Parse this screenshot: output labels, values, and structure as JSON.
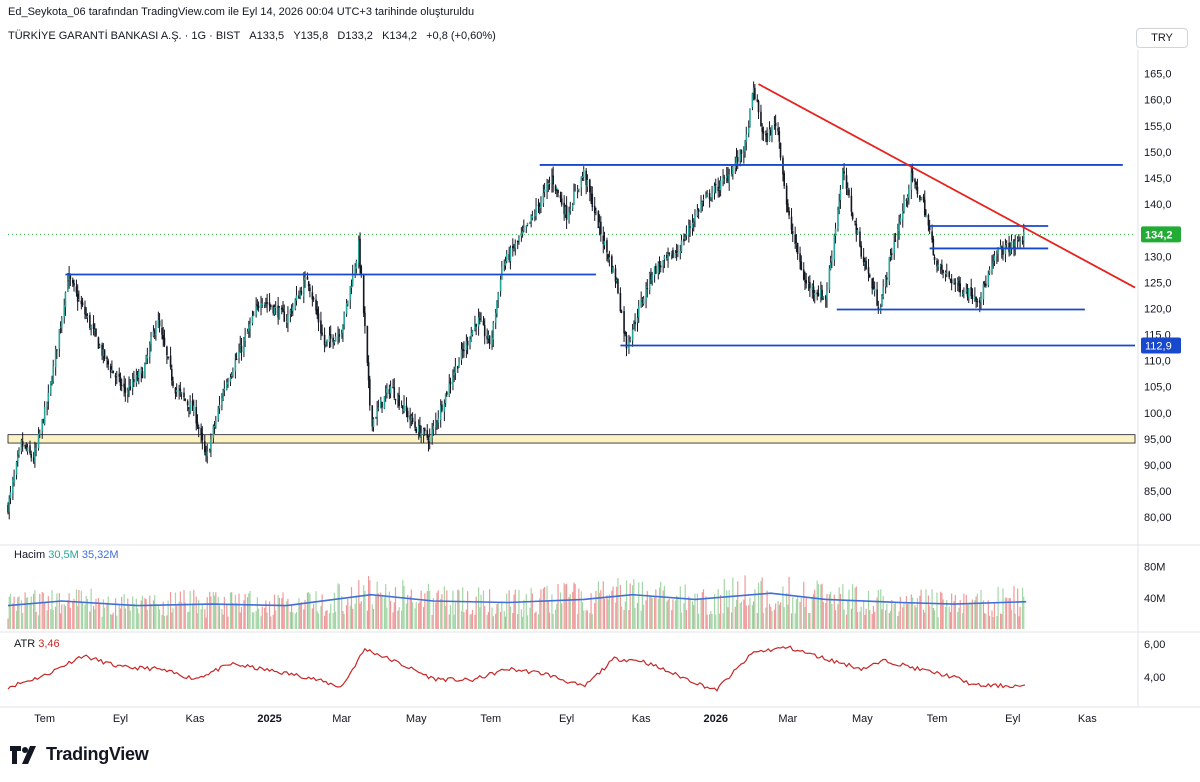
{
  "header": {
    "credit": "Ed_Seykota_06 tarafından TradingView.com ile Eyl 14, 2026 00:04 UTC+3 tarihinde oluşturuldu",
    "symbol_line": "TÜRKİYE GARANTİ BANKASI A.Ş. · 1G · BIST",
    "ohlc": {
      "open_label": "A",
      "open": "133,5",
      "high_label": "Y",
      "high": "135,8",
      "low_label": "D",
      "low": "133,2",
      "close_label": "K",
      "close": "134,2",
      "change": "+0,8 (+0,60%)"
    }
  },
  "currency": "TRY",
  "brand": "TradingView",
  "colors": {
    "up": "#26a69a",
    "candle": "#131722",
    "hline": "#1848cc",
    "trend": "#e8211c",
    "zone_fill": "#fdf2c4",
    "vol_up": "#a5d6a7",
    "vol_down": "#ef9a9a",
    "vol_ma": "#3f6fd8",
    "atr": "#c62828",
    "price_tag": "#22ab35",
    "level_tag": "#1848cc"
  },
  "chart_data": [
    {
      "type": "candlestick",
      "title": "TÜRKİYE GARANTİ BANKASI A.Ş. · 1G · BIST",
      "y_ticks": [
        "165,0",
        "160,0",
        "155,0",
        "150,0",
        "145,0",
        "140,0",
        "135,0",
        "130,0",
        "125,0",
        "120,0",
        "115,0",
        "110,0",
        "105,0",
        "100,0",
        "95,00",
        "90,00",
        "85,00",
        "80,00"
      ],
      "y_tick_values": [
        165,
        160,
        155,
        150,
        145,
        140,
        135,
        130,
        125,
        120,
        115,
        110,
        105,
        100,
        95,
        90,
        85,
        80
      ],
      "ylim": [
        76,
        168
      ],
      "x_ticks": [
        "Tem",
        "Eyl",
        "Kas",
        "2025",
        "Mar",
        "May",
        "Tem",
        "Eyl",
        "Kas",
        "2026",
        "Mar",
        "May",
        "Tem",
        "Eyl",
        "Kas"
      ],
      "x_tick_dates": [
        "2024-07",
        "2024-09",
        "2024-11",
        "2025-01",
        "2025-03",
        "2025-05",
        "2025-07",
        "2025-09",
        "2025-11",
        "2026-01",
        "2026-03",
        "2026-05",
        "2026-07",
        "2026-09",
        "2026-11"
      ],
      "xlim": [
        "2024-06-01",
        "2026-12-10"
      ],
      "close_series": [
        {
          "x": "2024-06-01",
          "y": 82
        },
        {
          "x": "2024-06-12",
          "y": 94
        },
        {
          "x": "2024-06-22",
          "y": 91
        },
        {
          "x": "2024-07-05",
          "y": 104
        },
        {
          "x": "2024-07-20",
          "y": 126
        },
        {
          "x": "2024-08-05",
          "y": 118
        },
        {
          "x": "2024-08-20",
          "y": 110
        },
        {
          "x": "2024-09-05",
          "y": 104
        },
        {
          "x": "2024-09-20",
          "y": 108
        },
        {
          "x": "2024-10-01",
          "y": 118
        },
        {
          "x": "2024-10-15",
          "y": 105
        },
        {
          "x": "2024-11-01",
          "y": 100
        },
        {
          "x": "2024-11-10",
          "y": 91
        },
        {
          "x": "2024-11-25",
          "y": 105
        },
        {
          "x": "2024-12-10",
          "y": 113
        },
        {
          "x": "2024-12-25",
          "y": 122
        },
        {
          "x": "2025-01-15",
          "y": 118
        },
        {
          "x": "2025-02-01",
          "y": 126
        },
        {
          "x": "2025-02-15",
          "y": 113
        },
        {
          "x": "2025-03-01",
          "y": 116
        },
        {
          "x": "2025-03-15",
          "y": 132
        },
        {
          "x": "2025-03-20",
          "y": 116
        },
        {
          "x": "2025-03-25",
          "y": 98
        },
        {
          "x": "2025-04-10",
          "y": 105
        },
        {
          "x": "2025-05-01",
          "y": 97
        },
        {
          "x": "2025-05-12",
          "y": 95
        },
        {
          "x": "2025-06-01",
          "y": 108
        },
        {
          "x": "2025-06-20",
          "y": 118
        },
        {
          "x": "2025-07-01",
          "y": 113
        },
        {
          "x": "2025-07-10",
          "y": 128
        },
        {
          "x": "2025-08-01",
          "y": 136
        },
        {
          "x": "2025-08-20",
          "y": 145
        },
        {
          "x": "2025-09-01",
          "y": 138
        },
        {
          "x": "2025-09-15",
          "y": 146
        },
        {
          "x": "2025-10-01",
          "y": 133
        },
        {
          "x": "2025-10-12",
          "y": 125
        },
        {
          "x": "2025-10-20",
          "y": 113
        },
        {
          "x": "2025-11-10",
          "y": 127
        },
        {
          "x": "2025-12-01",
          "y": 131
        },
        {
          "x": "2025-12-20",
          "y": 140
        },
        {
          "x": "2026-01-10",
          "y": 145
        },
        {
          "x": "2026-01-25",
          "y": 151
        },
        {
          "x": "2026-02-01",
          "y": 162
        },
        {
          "x": "2026-02-10",
          "y": 152
        },
        {
          "x": "2026-02-20",
          "y": 156
        },
        {
          "x": "2026-03-01",
          "y": 138
        },
        {
          "x": "2026-03-15",
          "y": 125
        },
        {
          "x": "2026-04-01",
          "y": 122
        },
        {
          "x": "2026-04-15",
          "y": 146
        },
        {
          "x": "2026-05-01",
          "y": 130
        },
        {
          "x": "2026-05-15",
          "y": 120
        },
        {
          "x": "2026-05-25",
          "y": 131
        },
        {
          "x": "2026-06-10",
          "y": 145
        },
        {
          "x": "2026-06-20",
          "y": 140
        },
        {
          "x": "2026-07-01",
          "y": 128
        },
        {
          "x": "2026-07-20",
          "y": 124
        },
        {
          "x": "2026-08-05",
          "y": 122
        },
        {
          "x": "2026-08-20",
          "y": 131
        },
        {
          "x": "2026-09-01",
          "y": 132
        },
        {
          "x": "2026-09-12",
          "y": 134.2
        }
      ],
      "horizontal_levels": [
        {
          "y": 126.5,
          "from": "2024-07-18",
          "to": "2025-09-25"
        },
        {
          "y": 147.5,
          "from": "2025-08-10",
          "to": "2026-11-30"
        },
        {
          "y": 135.8,
          "from": "2026-06-25",
          "to": "2026-09-30"
        },
        {
          "y": 131.5,
          "from": "2026-06-25",
          "to": "2026-09-30"
        },
        {
          "y": 119.8,
          "from": "2026-04-10",
          "to": "2026-10-30"
        },
        {
          "y": 112.9,
          "from": "2025-10-15",
          "to": "2026-12-10"
        }
      ],
      "support_zone": [
        94.2,
        95.8
      ],
      "trendline": [
        {
          "x": "2026-02-05",
          "y": 163
        },
        {
          "x": "2026-12-10",
          "y": 124
        }
      ],
      "last_price": "134,2",
      "last_price_value": 134.2,
      "level_tag": "112,9",
      "level_tag_value": 112.9
    },
    {
      "type": "bar",
      "title": "Hacim",
      "legend": [
        {
          "name": "Hacim",
          "value": "30,5M"
        },
        {
          "name": "",
          "value": "35,32M"
        }
      ],
      "y_ticks": [
        "80M",
        "40M"
      ],
      "y_tick_values": [
        80,
        40
      ],
      "ylim": [
        0,
        95
      ],
      "unit": "M",
      "volume_profile": [
        {
          "x": "2024-06-01",
          "y": 30
        },
        {
          "x": "2024-07-15",
          "y": 36
        },
        {
          "x": "2024-09-15",
          "y": 30
        },
        {
          "x": "2024-11-15",
          "y": 32
        },
        {
          "x": "2025-01-15",
          "y": 30
        },
        {
          "x": "2025-03-25",
          "y": 44
        },
        {
          "x": "2025-05-15",
          "y": 36
        },
        {
          "x": "2025-07-15",
          "y": 34
        },
        {
          "x": "2025-09-15",
          "y": 38
        },
        {
          "x": "2025-10-25",
          "y": 44
        },
        {
          "x": "2025-12-15",
          "y": 38
        },
        {
          "x": "2026-02-15",
          "y": 46
        },
        {
          "x": "2026-04-01",
          "y": 38
        },
        {
          "x": "2026-06-01",
          "y": 34
        },
        {
          "x": "2026-07-15",
          "y": 32
        },
        {
          "x": "2026-09-12",
          "y": 35
        }
      ]
    },
    {
      "type": "line",
      "title": "ATR",
      "legend": [
        {
          "name": "ATR",
          "value": "3,46"
        }
      ],
      "y_ticks": [
        "6,00",
        "4,00"
      ],
      "y_tick_values": [
        6,
        4
      ],
      "ylim": [
        2.5,
        6.6
      ],
      "series": [
        {
          "name": "ATR",
          "points": [
            {
              "x": "2024-06-01",
              "y": 3.4
            },
            {
              "x": "2024-07-01",
              "y": 4.1
            },
            {
              "x": "2024-08-01",
              "y": 5.3
            },
            {
              "x": "2024-09-01",
              "y": 4.6
            },
            {
              "x": "2024-10-01",
              "y": 4.5
            },
            {
              "x": "2024-11-01",
              "y": 3.9
            },
            {
              "x": "2024-12-01",
              "y": 4.8
            },
            {
              "x": "2025-01-01",
              "y": 4.4
            },
            {
              "x": "2025-02-01",
              "y": 4.0
            },
            {
              "x": "2025-03-01",
              "y": 3.4
            },
            {
              "x": "2025-03-20",
              "y": 5.7
            },
            {
              "x": "2025-04-15",
              "y": 4.9
            },
            {
              "x": "2025-05-15",
              "y": 3.9
            },
            {
              "x": "2025-06-15",
              "y": 3.8
            },
            {
              "x": "2025-07-15",
              "y": 4.5
            },
            {
              "x": "2025-08-15",
              "y": 4.2
            },
            {
              "x": "2025-09-15",
              "y": 3.4
            },
            {
              "x": "2025-10-10",
              "y": 5.1
            },
            {
              "x": "2025-11-01",
              "y": 5.0
            },
            {
              "x": "2025-12-01",
              "y": 4.1
            },
            {
              "x": "2026-01-01",
              "y": 3.2
            },
            {
              "x": "2026-02-01",
              "y": 5.5
            },
            {
              "x": "2026-03-01",
              "y": 5.8
            },
            {
              "x": "2026-04-01",
              "y": 5.1
            },
            {
              "x": "2026-05-01",
              "y": 4.5
            },
            {
              "x": "2026-05-20",
              "y": 5.0
            },
            {
              "x": "2026-06-15",
              "y": 4.5
            },
            {
              "x": "2026-07-15",
              "y": 4.0
            },
            {
              "x": "2026-08-01",
              "y": 3.5
            },
            {
              "x": "2026-09-12",
              "y": 3.46
            }
          ]
        }
      ]
    }
  ]
}
